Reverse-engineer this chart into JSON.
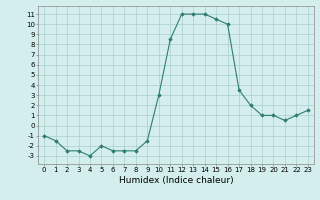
{
  "x": [
    0,
    1,
    2,
    3,
    4,
    5,
    6,
    7,
    8,
    9,
    10,
    11,
    12,
    13,
    14,
    15,
    16,
    17,
    18,
    19,
    20,
    21,
    22,
    23
  ],
  "y": [
    -1,
    -1.5,
    -2.5,
    -2.5,
    -3,
    -2,
    -2.5,
    -2.5,
    -2.5,
    -1.5,
    3,
    8.5,
    11,
    11,
    11,
    10.5,
    10,
    3.5,
    2,
    1,
    1,
    0.5,
    1,
    1.5
  ],
  "color": "#2e7d72",
  "bg_color": "#d4eeee",
  "grid_color": "#aacece",
  "xlabel": "Humidex (Indice chaleur)",
  "xlabel_fontsize": 6.5,
  "ylabel_values": [
    11,
    10,
    9,
    8,
    7,
    6,
    5,
    4,
    3,
    2,
    1,
    0,
    -1,
    -2,
    -3
  ],
  "ylim": [
    -3.8,
    11.8
  ],
  "xlim": [
    -0.5,
    23.5
  ],
  "xtick_labels": [
    "0",
    "1",
    "2",
    "3",
    "4",
    "5",
    "6",
    "7",
    "8",
    "9",
    "10",
    "11",
    "12",
    "13",
    "14",
    "15",
    "16",
    "17",
    "18",
    "19",
    "20",
    "21",
    "22",
    "23"
  ],
  "marker": "D",
  "markersize": 1.8,
  "linewidth": 0.8,
  "tick_fontsize": 5.0
}
